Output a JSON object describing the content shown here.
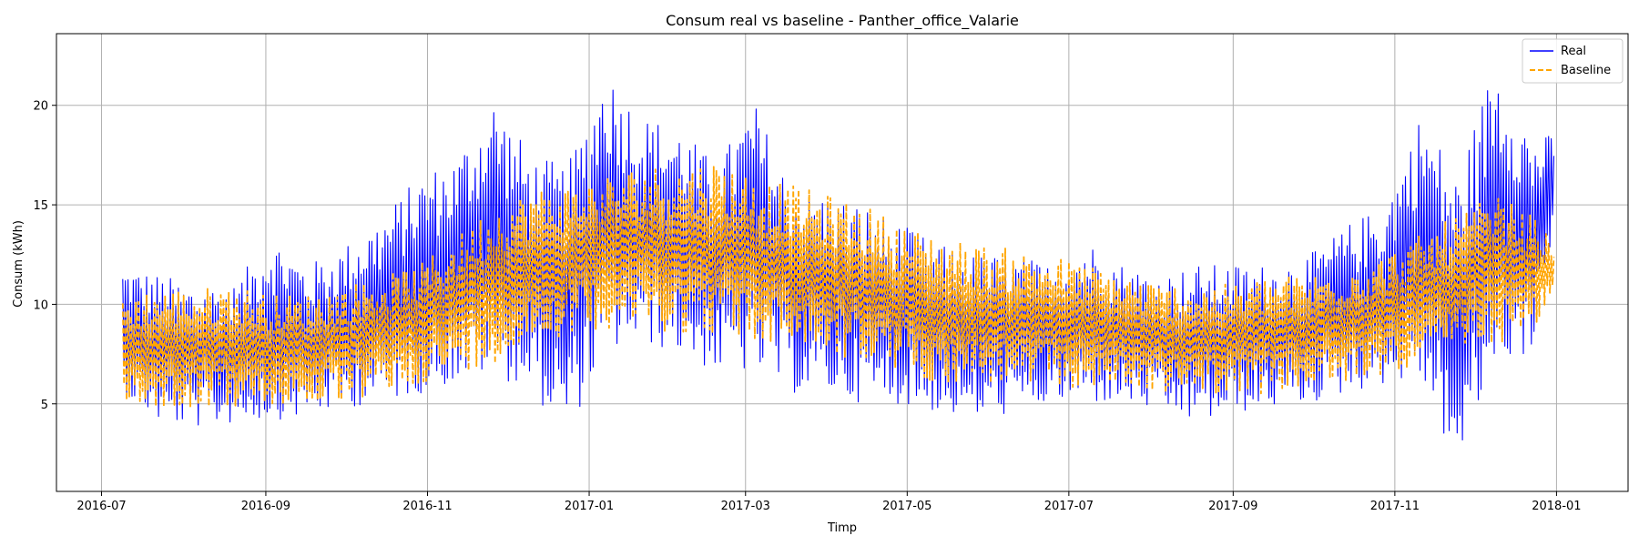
{
  "chart_data": {
    "type": "line",
    "title": "Consum real vs baseline - Panther_office_Valarie",
    "xlabel": "Timp",
    "ylabel": "Consum (kWh)",
    "x_range": [
      "2016-06-14",
      "2018-01-28"
    ],
    "ylim": [
      0.6,
      23.6
    ],
    "x_ticks": [
      "2016-07",
      "2016-09",
      "2016-11",
      "2017-01",
      "2017-03",
      "2017-05",
      "2017-07",
      "2017-09",
      "2017-11",
      "2018-01"
    ],
    "y_ticks": [
      5,
      10,
      15,
      20
    ],
    "grid": true,
    "legend_position": "top-right",
    "colors": {
      "Real": "#0000ff",
      "Baseline": "#ffa500"
    },
    "series": [
      {
        "name": "Real",
        "style": "solid",
        "x": [
          "2016-07-09",
          "2016-07-23",
          "2016-08-06",
          "2016-08-20",
          "2016-09-03",
          "2016-09-17",
          "2016-10-01",
          "2016-10-15",
          "2016-10-29",
          "2016-11-12",
          "2016-11-26",
          "2016-12-10",
          "2016-12-24",
          "2017-01-07",
          "2017-01-21",
          "2017-02-04",
          "2017-02-18",
          "2017-03-04",
          "2017-03-18",
          "2017-04-01",
          "2017-04-15",
          "2017-04-29",
          "2017-05-13",
          "2017-05-27",
          "2017-06-10",
          "2017-06-24",
          "2017-07-08",
          "2017-07-22",
          "2017-08-05",
          "2017-08-19",
          "2017-09-02",
          "2017-09-16",
          "2017-09-30",
          "2017-10-14",
          "2017-10-28",
          "2017-11-11",
          "2017-11-25",
          "2017-12-09",
          "2017-12-23",
          "2017-12-31"
        ],
        "low": [
          5.5,
          4.0,
          3.8,
          4.0,
          4.2,
          4.3,
          4.8,
          5.0,
          5.5,
          6.0,
          6.5,
          5.5,
          3.5,
          7.5,
          8.0,
          7.5,
          6.5,
          6.5,
          5.5,
          5.5,
          5.0,
          5.0,
          4.5,
          4.2,
          4.5,
          5.0,
          5.0,
          5.0,
          4.5,
          4.0,
          4.5,
          4.8,
          5.0,
          5.5,
          6.0,
          6.0,
          1.5,
          7.0,
          7.5,
          14.0
        ],
        "high": [
          12.0,
          11.5,
          11.0,
          11.0,
          13.5,
          12.0,
          13.0,
          14.5,
          16.5,
          17.5,
          20.5,
          17.5,
          17.0,
          22.0,
          19.5,
          19.0,
          17.0,
          20.3,
          16.0,
          15.5,
          15.0,
          14.0,
          13.0,
          12.5,
          12.5,
          12.0,
          13.2,
          12.0,
          11.5,
          12.0,
          12.0,
          12.0,
          12.5,
          14.0,
          15.0,
          19.7,
          16.5,
          22.5,
          18.5,
          18.5
        ]
      },
      {
        "name": "Baseline",
        "style": "dashed",
        "x": [
          "2016-07-09",
          "2016-07-23",
          "2016-08-06",
          "2016-08-20",
          "2016-09-03",
          "2016-09-17",
          "2016-10-01",
          "2016-10-15",
          "2016-10-29",
          "2016-11-12",
          "2016-11-26",
          "2016-12-10",
          "2016-12-24",
          "2017-01-07",
          "2017-01-21",
          "2017-02-04",
          "2017-02-18",
          "2017-03-04",
          "2017-03-18",
          "2017-04-01",
          "2017-04-15",
          "2017-04-29",
          "2017-05-13",
          "2017-05-27",
          "2017-06-10",
          "2017-06-24",
          "2017-07-08",
          "2017-07-22",
          "2017-08-05",
          "2017-08-19",
          "2017-09-02",
          "2017-09-16",
          "2017-09-30",
          "2017-10-14",
          "2017-10-28",
          "2017-11-11",
          "2017-11-25",
          "2017-12-09",
          "2017-12-23",
          "2017-12-31"
        ],
        "low": [
          5.0,
          4.8,
          4.8,
          4.8,
          4.8,
          5.0,
          5.0,
          5.5,
          6.0,
          6.5,
          7.0,
          8.0,
          8.5,
          8.8,
          8.8,
          8.5,
          8.5,
          8.0,
          8.0,
          7.5,
          7.0,
          6.5,
          6.0,
          6.0,
          5.8,
          5.8,
          5.8,
          5.8,
          5.5,
          5.5,
          5.5,
          5.5,
          5.8,
          6.0,
          6.5,
          7.0,
          7.5,
          8.0,
          8.5,
          10.5
        ],
        "high": [
          10.5,
          10.8,
          10.8,
          11.0,
          10.5,
          10.5,
          11.0,
          11.5,
          12.0,
          13.5,
          15.0,
          15.8,
          16.0,
          16.5,
          17.0,
          17.0,
          17.3,
          16.5,
          16.0,
          15.5,
          15.0,
          14.0,
          13.5,
          13.0,
          12.8,
          12.5,
          12.0,
          11.5,
          11.0,
          11.0,
          11.0,
          11.5,
          11.5,
          12.0,
          12.5,
          13.5,
          14.5,
          15.5,
          14.5,
          13.0
        ]
      }
    ]
  }
}
